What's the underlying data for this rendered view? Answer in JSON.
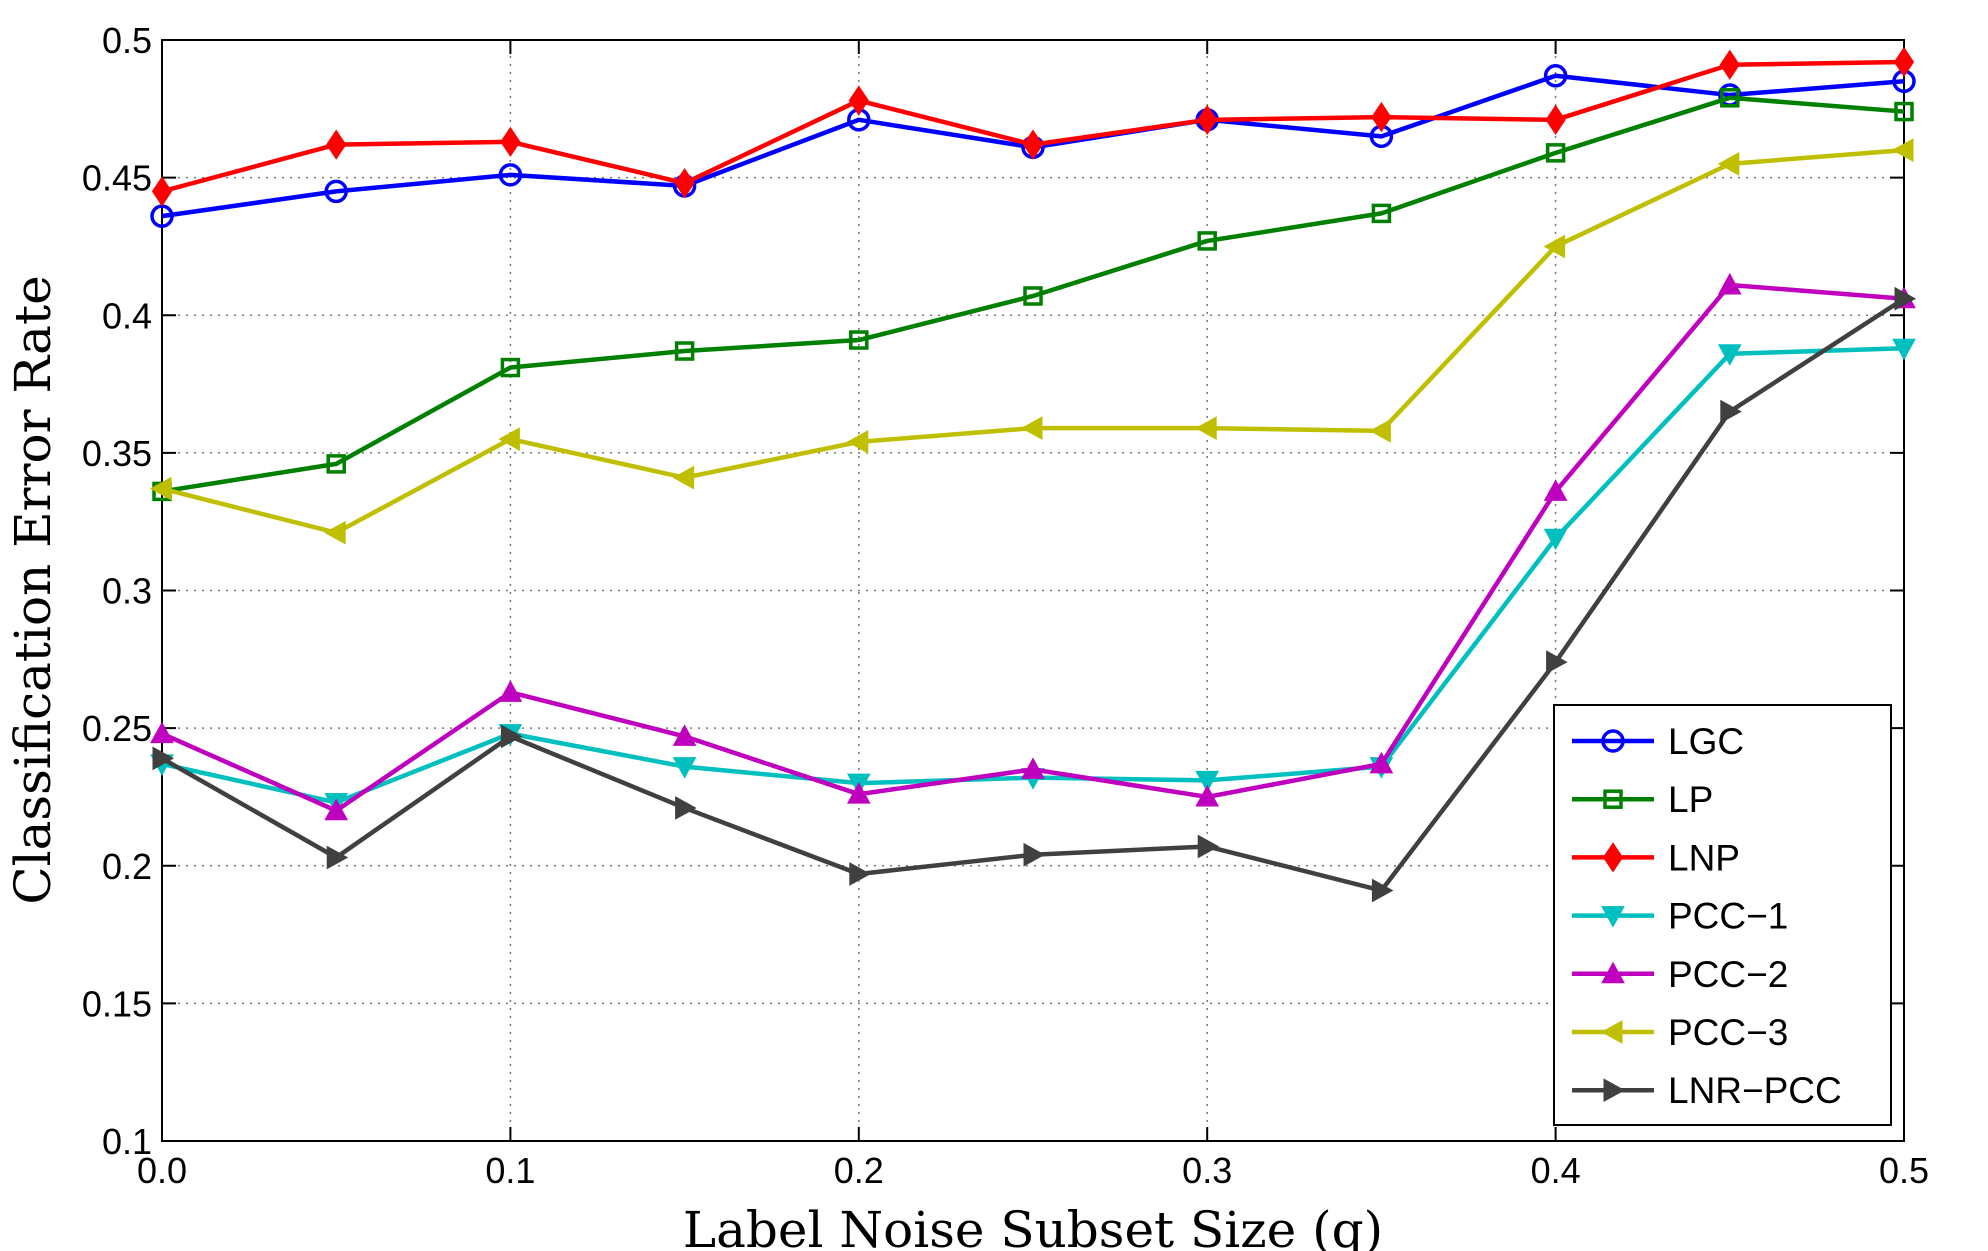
{
  "chart_data": {
    "type": "line",
    "xlabel": "Label Noise Subset Size (q)",
    "ylabel": "Classification Error Rate",
    "xlim": [
      0,
      0.5
    ],
    "ylim": [
      0.1,
      0.5
    ],
    "x": [
      0.0,
      0.05,
      0.1,
      0.15,
      0.2,
      0.25,
      0.3,
      0.35,
      0.4,
      0.45,
      0.5
    ],
    "xticks": [
      0.0,
      0.1,
      0.2,
      0.3,
      0.4,
      0.5
    ],
    "xtick_labels": [
      "0.0",
      "0.1",
      "0.2",
      "0.3",
      "0.4",
      "0.5"
    ],
    "yticks": [
      0.1,
      0.15,
      0.2,
      0.25,
      0.3,
      0.35,
      0.4,
      0.45,
      0.5
    ],
    "ytick_labels": [
      "0.1",
      "0.15",
      "0.2",
      "0.25",
      "0.3",
      "0.35",
      "0.4",
      "0.45",
      "0.5"
    ],
    "grid": true,
    "legend_position": "bottom-right",
    "series": [
      {
        "name": "LGC",
        "color": "#0000ff",
        "marker": "circle",
        "values": [
          0.436,
          0.445,
          0.451,
          0.447,
          0.471,
          0.461,
          0.471,
          0.465,
          0.487,
          0.48,
          0.485
        ]
      },
      {
        "name": "LP",
        "color": "#008000",
        "marker": "square",
        "values": [
          0.336,
          0.346,
          0.381,
          0.387,
          0.391,
          0.407,
          0.427,
          0.437,
          0.459,
          0.479,
          0.474
        ]
      },
      {
        "name": "LNP",
        "color": "#ff0000",
        "marker": "diamond",
        "values": [
          0.445,
          0.462,
          0.463,
          0.448,
          0.478,
          0.462,
          0.471,
          0.472,
          0.471,
          0.491,
          0.492
        ]
      },
      {
        "name": "PCC−1",
        "color": "#00bfbf",
        "marker": "triangle-down",
        "values": [
          0.237,
          0.223,
          0.248,
          0.236,
          0.23,
          0.232,
          0.231,
          0.236,
          0.319,
          0.386,
          0.388
        ]
      },
      {
        "name": "PCC−2",
        "color": "#bf00bf",
        "marker": "triangle-up",
        "values": [
          0.248,
          0.22,
          0.263,
          0.247,
          0.226,
          0.235,
          0.225,
          0.237,
          0.336,
          0.411,
          0.406
        ]
      },
      {
        "name": "PCC−3",
        "color": "#bfbf00",
        "marker": "triangle-left",
        "values": [
          0.337,
          0.321,
          0.355,
          0.341,
          0.354,
          0.359,
          0.359,
          0.358,
          0.425,
          0.455,
          0.46
        ]
      },
      {
        "name": "LNR−PCC",
        "color": "#404040",
        "marker": "triangle-right",
        "values": [
          0.239,
          0.203,
          0.247,
          0.221,
          0.197,
          0.204,
          0.207,
          0.191,
          0.274,
          0.365,
          0.406
        ]
      }
    ]
  }
}
